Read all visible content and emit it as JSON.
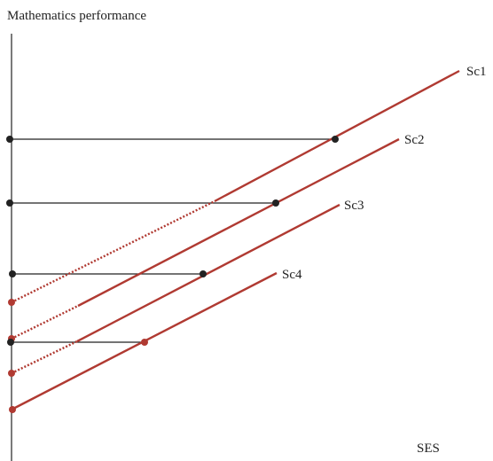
{
  "figure": {
    "y_axis_label": "Mathematics performance",
    "x_axis_label": "SES"
  },
  "lines": [
    {
      "label": "Sc1"
    },
    {
      "label": "Sc2"
    },
    {
      "label": "Sc3"
    },
    {
      "label": "Sc4"
    }
  ],
  "colors": {
    "line": "#b03a32",
    "point_on_line": "#222222",
    "intercept_point": "#b03a32",
    "guide": "#222222",
    "axis": "#222222"
  }
}
